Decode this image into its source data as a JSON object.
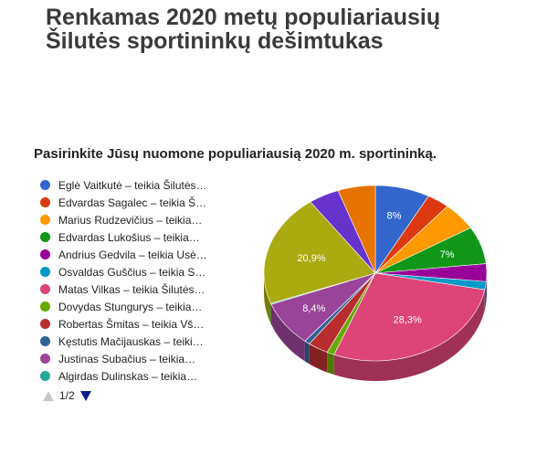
{
  "page": {
    "title_line1": "Renkamas 2020 metų populiariausių",
    "title_line2": "Šilutės sportininkų dešimtukas"
  },
  "chart_data": {
    "type": "pie",
    "title": "Pasirinkite Jūsų nuomone populiariausią 2020 m. sportininką.",
    "legend_position": "left",
    "three_d": true,
    "slices": [
      {
        "label": "Eglė Vaitkutė – teikia Šilutės…",
        "value": 8.0,
        "color": "#3366cc",
        "data_label": "8%"
      },
      {
        "label": "Edvardas Sagalec – teikia Š…",
        "value": 3.3,
        "color": "#dc3912",
        "data_label": ""
      },
      {
        "label": "Marius Rudzevičius – teikia…",
        "value": 5.2,
        "color": "#ff9900",
        "data_label": ""
      },
      {
        "label": "Edvardas Lukošius – teikia…",
        "value": 7.0,
        "color": "#109618",
        "data_label": "7%"
      },
      {
        "label": "Andrius Gedvila – teikia Usė…",
        "value": 3.3,
        "color": "#990099",
        "data_label": ""
      },
      {
        "label": "Osvaldas Guščius – teikia S…",
        "value": 1.5,
        "color": "#0099c6",
        "data_label": ""
      },
      {
        "label": "Matas Vilkas – teikia Šilutės…",
        "value": 28.3,
        "color": "#dd4477",
        "data_label": "28,3%"
      },
      {
        "label": "Dovydas Stungurys – teikia…",
        "value": 1.1,
        "color": "#66aa00",
        "data_label": ""
      },
      {
        "label": "Robertas Šmitas – teikia Vš…",
        "value": 3.0,
        "color": "#b82e2e",
        "data_label": ""
      },
      {
        "label": "Kęstutis Mačijauskas – teiki…",
        "value": 0.8,
        "color": "#316395",
        "data_label": ""
      },
      {
        "label": "Justinas Subačius – teikia…",
        "value": 8.4,
        "color": "#994499",
        "data_label": "8,4%"
      },
      {
        "label": "Algirdas Dulinskas – teikia…",
        "value": 0.2,
        "color": "#22aa99",
        "data_label": ""
      },
      {
        "label": "",
        "value": 20.9,
        "color": "#aaaa11",
        "data_label": "20,9%"
      },
      {
        "label": "",
        "value": 4.5,
        "color": "#6633cc",
        "data_label": ""
      },
      {
        "label": "",
        "value": 5.5,
        "color": "#e67300",
        "data_label": ""
      }
    ],
    "legend_visible_count": 12
  },
  "pager": {
    "text": "1/2",
    "prev_icon": "triangle-up-icon",
    "next_icon": "triangle-down-icon"
  }
}
